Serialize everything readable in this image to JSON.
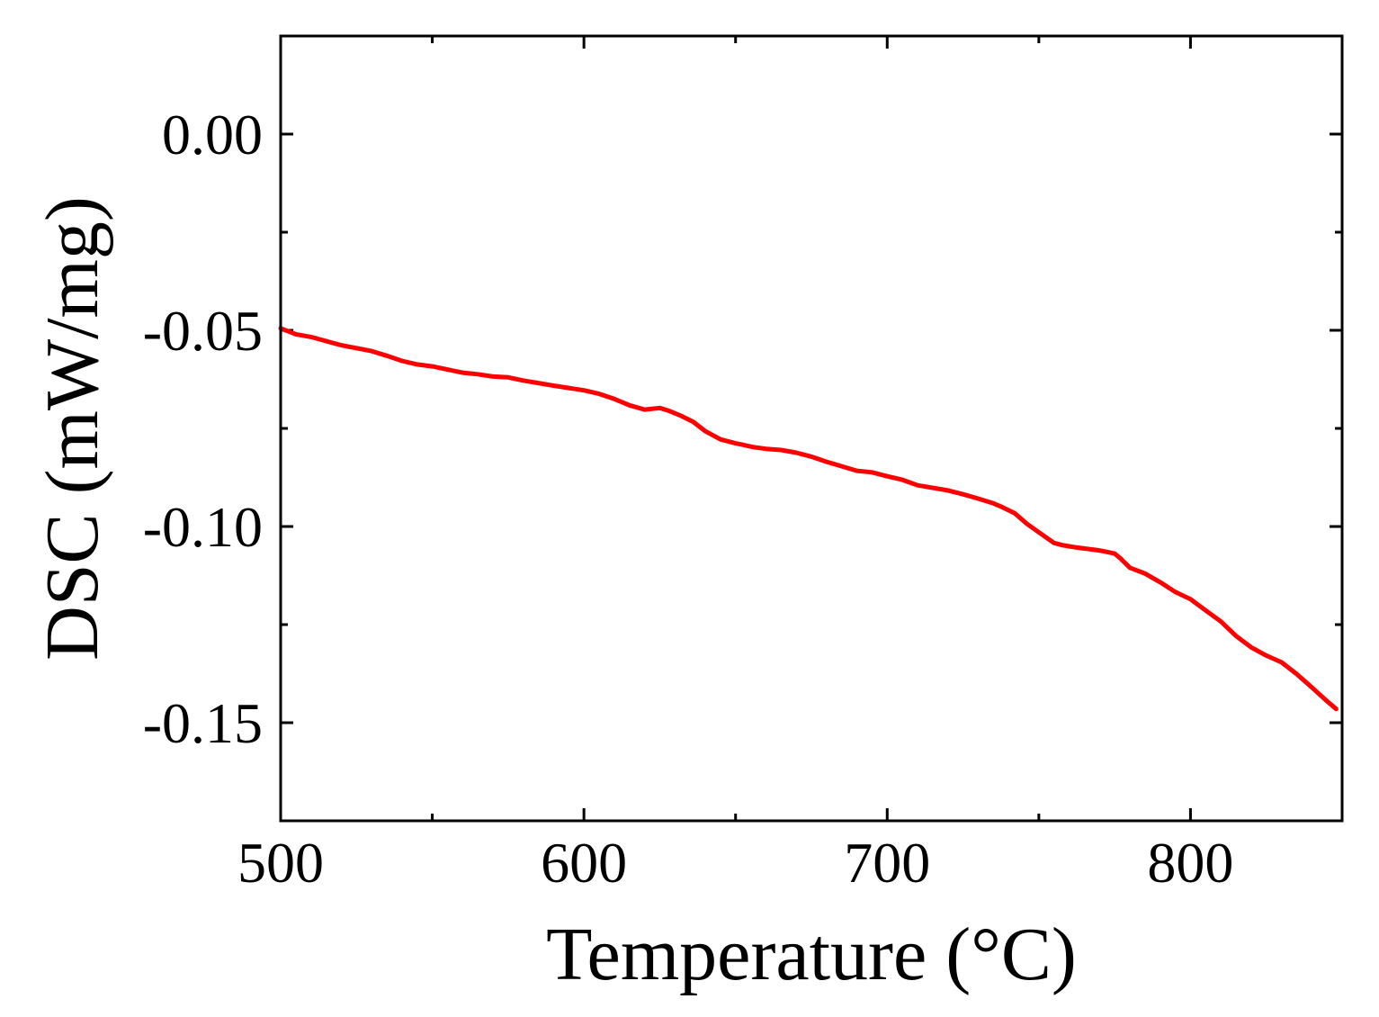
{
  "chart_data": {
    "type": "line",
    "title": "",
    "xlabel": "Temperature (°C)",
    "ylabel": "DSC (mW/mg)",
    "xlim": [
      500,
      850
    ],
    "ylim": [
      -0.175,
      0.025
    ],
    "x_ticks": [
      500,
      600,
      700,
      800
    ],
    "x_tick_labels": [
      "500",
      "600",
      "700",
      "800"
    ],
    "x_minor_ticks": [
      550,
      650,
      750
    ],
    "y_ticks": [
      0.0,
      -0.05,
      -0.1,
      -0.15
    ],
    "y_tick_labels": [
      "0.00",
      "-0.05",
      "-0.10",
      "-0.15"
    ],
    "y_minor_ticks": [
      -0.025,
      -0.075,
      -0.125
    ],
    "grid": false,
    "legend": "none",
    "series": [
      {
        "color": "#ff0000",
        "x": [
          500,
          505,
          510,
          520,
          530,
          535,
          540,
          545,
          550,
          555,
          560,
          565,
          570,
          575,
          580,
          590,
          600,
          605,
          610,
          615,
          620,
          625,
          628,
          632,
          636,
          640,
          645,
          650,
          652,
          656,
          660,
          665,
          670,
          675,
          680,
          690,
          695,
          700,
          705,
          710,
          720,
          725,
          730,
          735,
          738,
          742,
          746,
          750,
          755,
          758,
          762,
          766,
          770,
          775,
          777,
          780,
          785,
          790,
          795,
          800,
          805,
          810,
          815,
          820,
          825,
          830,
          835,
          840,
          845,
          848
        ],
        "y": [
          -0.0495,
          -0.051,
          -0.0517,
          -0.0538,
          -0.0553,
          -0.0565,
          -0.0578,
          -0.0587,
          -0.0592,
          -0.06,
          -0.0608,
          -0.0612,
          -0.0618,
          -0.062,
          -0.0628,
          -0.0641,
          -0.0653,
          -0.0662,
          -0.0675,
          -0.0691,
          -0.0702,
          -0.0698,
          -0.0705,
          -0.0718,
          -0.0733,
          -0.0757,
          -0.0778,
          -0.0788,
          -0.0791,
          -0.0798,
          -0.0802,
          -0.0805,
          -0.0812,
          -0.0822,
          -0.0835,
          -0.0858,
          -0.0862,
          -0.0872,
          -0.0881,
          -0.0895,
          -0.0908,
          -0.0918,
          -0.0929,
          -0.0941,
          -0.0951,
          -0.0966,
          -0.0993,
          -0.1015,
          -0.1042,
          -0.1048,
          -0.1053,
          -0.1057,
          -0.1061,
          -0.1069,
          -0.1082,
          -0.1105,
          -0.112,
          -0.1142,
          -0.1167,
          -0.1185,
          -0.1214,
          -0.1242,
          -0.1279,
          -0.1308,
          -0.1329,
          -0.1346,
          -0.1376,
          -0.141,
          -0.1445,
          -0.1465
        ]
      }
    ]
  }
}
